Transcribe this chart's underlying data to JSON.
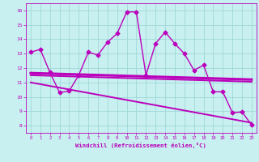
{
  "xlabel": "Windchill (Refroidissement éolien,°C)",
  "ylabel": "",
  "bg_color": "#c8f0f0",
  "grid_color": "#a0d8d8",
  "line_color": "#bb00bb",
  "x_ticks": [
    0,
    1,
    2,
    3,
    4,
    5,
    6,
    7,
    8,
    9,
    10,
    11,
    12,
    13,
    14,
    15,
    16,
    17,
    18,
    19,
    20,
    21,
    22,
    23
  ],
  "y_ticks": [
    8,
    9,
    10,
    11,
    12,
    13,
    14,
    15,
    16
  ],
  "xlim": [
    -0.5,
    23.5
  ],
  "ylim": [
    7.5,
    16.5
  ],
  "series": [
    {
      "x": [
        0,
        1,
        2,
        3,
        4,
        5,
        6,
        7,
        8,
        9,
        10,
        11,
        12,
        13,
        14,
        15,
        16,
        17,
        18,
        19,
        20,
        21,
        22,
        23
      ],
      "y": [
        13.1,
        13.3,
        11.7,
        10.3,
        10.4,
        11.5,
        13.1,
        12.9,
        13.8,
        14.4,
        15.9,
        15.9,
        11.5,
        13.7,
        14.5,
        13.7,
        13.0,
        11.85,
        12.2,
        10.35,
        10.35,
        8.9,
        8.95,
        8.05
      ],
      "marker": "D",
      "markersize": 2.5,
      "linewidth": 1.0
    },
    {
      "x": [
        0,
        23
      ],
      "y": [
        11.65,
        11.2
      ],
      "marker": null,
      "linewidth": 2.2
    },
    {
      "x": [
        0,
        23
      ],
      "y": [
        11.5,
        11.05
      ],
      "marker": null,
      "linewidth": 1.4
    },
    {
      "x": [
        0,
        23
      ],
      "y": [
        11.0,
        8.2
      ],
      "marker": null,
      "linewidth": 1.4
    }
  ]
}
